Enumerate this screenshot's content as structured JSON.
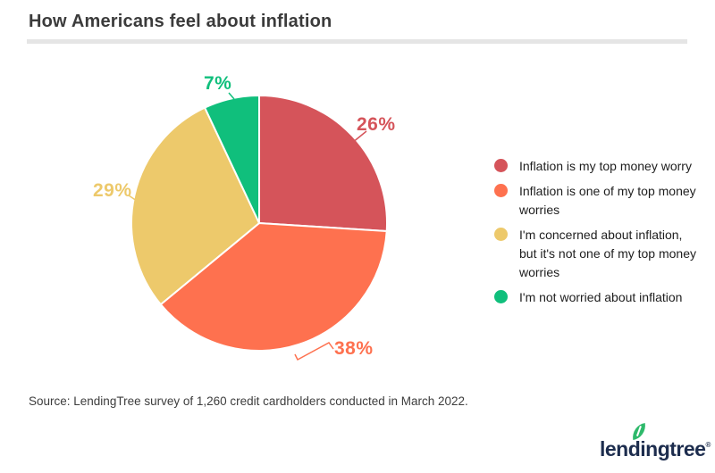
{
  "header": {
    "title": "How Americans feel about inflation"
  },
  "chart_data": {
    "type": "pie",
    "title": "How Americans feel about inflation",
    "slices": [
      {
        "label": "Inflation is my top money worry",
        "value": 26,
        "display": "26%",
        "color": "#d5545a"
      },
      {
        "label": "Inflation is one of my top money worries",
        "value": 38,
        "display": "38%",
        "color": "#fe714f"
      },
      {
        "label": "I'm concerned about inflation, but it's not one of my top money worries",
        "value": 29,
        "display": "29%",
        "color": "#edc96b"
      },
      {
        "label": "I'm not worried about inflation",
        "value": 7,
        "display": "7%",
        "color": "#10bf7c"
      }
    ],
    "total": 100,
    "start_angle_deg": 0,
    "direction": "clockwise",
    "legend_position": "right"
  },
  "source": {
    "text": "Source: LendingTree survey of 1,260 credit cardholders conducted in March 2022."
  },
  "logo": {
    "text": "lendingtree",
    "registered": "®",
    "brand_color": "#1d2d4e",
    "leaf_color": "#2eb96b"
  }
}
